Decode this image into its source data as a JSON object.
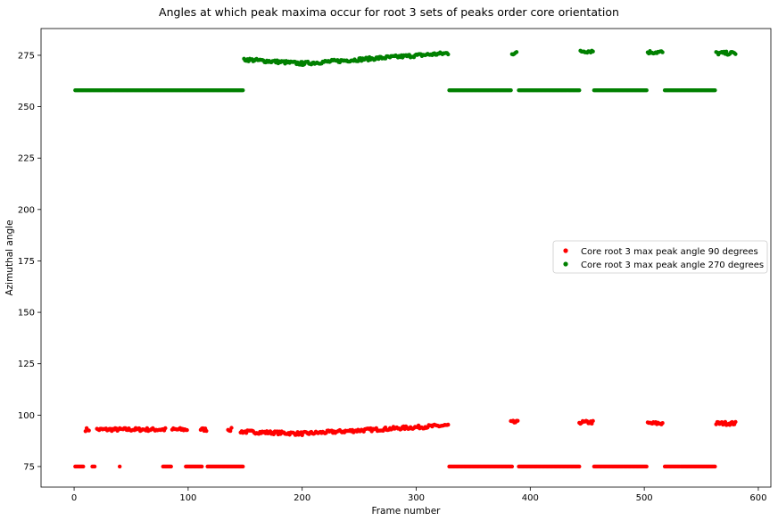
{
  "chart_data": {
    "type": "scatter",
    "title": "Angles at which peak maxima occur for root 3 sets of peaks order core orientation",
    "xlabel": "Frame number",
    "ylabel": "Azimuthal angle",
    "xlim": [
      -29,
      611
    ],
    "ylim": [
      65,
      288
    ],
    "xticks": [
      0,
      100,
      200,
      300,
      400,
      500,
      600
    ],
    "yticks": [
      75,
      100,
      125,
      150,
      175,
      200,
      225,
      250,
      275
    ],
    "legend_position": "center-right",
    "grid": false,
    "series": [
      {
        "name": "Core root 3 max peak angle 90 degrees",
        "color": "#ff0000",
        "segments": [
          {
            "x_start": 1,
            "x_end": 8,
            "step": 1,
            "y": 75
          },
          {
            "x_start": 16,
            "x_end": 18,
            "step": 1,
            "y": 75
          },
          {
            "x_start": 40,
            "x_end": 40,
            "step": 1,
            "y": 75
          },
          {
            "x_start": 78,
            "x_end": 85,
            "step": 1,
            "y": 75
          },
          {
            "x_start": 98,
            "x_end": 112,
            "step": 1,
            "y": 75
          },
          {
            "x_start": 117,
            "x_end": 148,
            "step": 1,
            "y": 75
          },
          {
            "x_start": 329,
            "x_end": 384,
            "step": 1,
            "y": 75
          },
          {
            "x_start": 390,
            "x_end": 443,
            "step": 1,
            "y": 75
          },
          {
            "x_start": 456,
            "x_end": 502,
            "step": 1,
            "y": 75
          },
          {
            "x_start": 518,
            "x_end": 562,
            "step": 1,
            "y": 75
          },
          {
            "x_start": 10,
            "x_end": 13,
            "step": 1,
            "y": 93
          },
          {
            "x_start": 20,
            "x_end": 80,
            "step": 1,
            "y": 93
          },
          {
            "x_start": 86,
            "x_end": 99,
            "step": 1,
            "y": 93
          },
          {
            "x_start": 111,
            "x_end": 116,
            "step": 1,
            "y": 93
          },
          {
            "x_start": 135,
            "x_end": 138,
            "step": 1,
            "y": 93
          },
          {
            "x_start": 146,
            "x_end": 200,
            "step": 1,
            "y_start": 92,
            "y_end": 91
          },
          {
            "x_start": 200,
            "x_end": 328,
            "step": 1,
            "y_start": 91,
            "y_end": 95
          },
          {
            "x_start": 383,
            "x_end": 389,
            "step": 1,
            "y": 96.5
          },
          {
            "x_start": 443,
            "x_end": 455,
            "step": 1,
            "y": 96.5
          },
          {
            "x_start": 503,
            "x_end": 516,
            "step": 1,
            "y": 96
          },
          {
            "x_start": 563,
            "x_end": 580,
            "step": 1,
            "y": 96
          }
        ]
      },
      {
        "name": "Core root 3 max peak angle 270 degrees",
        "color": "#008000",
        "segments": [
          {
            "x_start": 1,
            "x_end": 148,
            "step": 1,
            "y": 258
          },
          {
            "x_start": 149,
            "x_end": 200,
            "step": 1,
            "y_start": 273,
            "y_end": 271
          },
          {
            "x_start": 200,
            "x_end": 328,
            "step": 1,
            "y_start": 271,
            "y_end": 276
          },
          {
            "x_start": 329,
            "x_end": 383,
            "step": 1,
            "y": 258
          },
          {
            "x_start": 384,
            "x_end": 388,
            "step": 1,
            "y": 276
          },
          {
            "x_start": 390,
            "x_end": 443,
            "step": 1,
            "y": 258
          },
          {
            "x_start": 444,
            "x_end": 455,
            "step": 1,
            "y": 277
          },
          {
            "x_start": 456,
            "x_end": 502,
            "step": 1,
            "y": 258
          },
          {
            "x_start": 503,
            "x_end": 516,
            "step": 1,
            "y": 276.5
          },
          {
            "x_start": 518,
            "x_end": 562,
            "step": 1,
            "y": 258
          },
          {
            "x_start": 563,
            "x_end": 580,
            "step": 1,
            "y": 276
          }
        ]
      }
    ]
  }
}
